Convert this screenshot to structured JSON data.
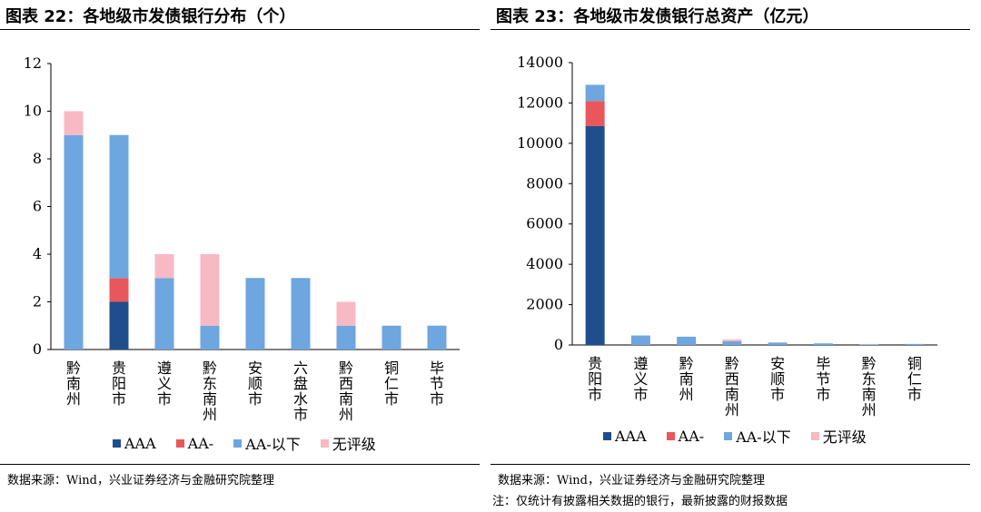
{
  "left": {
    "title": "图表 22：各地级市发债银行分布（个）",
    "source": "数据来源：Wind，兴业证券经济与金融研究院整理"
  },
  "right": {
    "title": "图表 23：各地级市发债银行总资产（亿元）",
    "source": "数据来源：Wind，兴业证券经济与金融研究院整理",
    "note": "注：仅统计有披露相关数据的银行，最新披露的财报数据"
  },
  "colors": {
    "AAA": "#1f4e8c",
    "AA-": "#e8575c",
    "AA-以下": "#6ea6df",
    "无评级": "#f7b9c4"
  },
  "chart_data": [
    {
      "type": "bar",
      "stacked": true,
      "categories": [
        "黔南州",
        "贵阳市",
        "遵义市",
        "黔东南州",
        "安顺市",
        "六盘水市",
        "黔西南州",
        "铜仁市",
        "毕节市"
      ],
      "series": [
        {
          "name": "AAA",
          "values": [
            0,
            2,
            0,
            0,
            0,
            0,
            0,
            0,
            0
          ]
        },
        {
          "name": "AA-",
          "values": [
            0,
            1,
            0,
            0,
            0,
            0,
            0,
            0,
            0
          ]
        },
        {
          "name": "AA-以下",
          "values": [
            9,
            6,
            3,
            1,
            3,
            3,
            1,
            1,
            1
          ]
        },
        {
          "name": "无评级",
          "values": [
            1,
            0,
            1,
            3,
            0,
            0,
            1,
            0,
            0
          ]
        }
      ],
      "ylim": [
        0,
        12
      ],
      "yticks": [
        0,
        2,
        4,
        6,
        8,
        10,
        12
      ],
      "grid": false,
      "legend": "bottom"
    },
    {
      "type": "bar",
      "stacked": true,
      "categories": [
        "贵阳市",
        "遵义市",
        "黔南州",
        "黔西南州",
        "安顺市",
        "毕节市",
        "黔东南州",
        "铜仁市"
      ],
      "series": [
        {
          "name": "AAA",
          "values": [
            10850,
            0,
            0,
            0,
            0,
            0,
            0,
            0
          ]
        },
        {
          "name": "AA-",
          "values": [
            1250,
            0,
            0,
            0,
            0,
            0,
            0,
            0
          ]
        },
        {
          "name": "AA-以下",
          "values": [
            800,
            470,
            410,
            180,
            120,
            80,
            30,
            50
          ]
        },
        {
          "name": "无评级",
          "values": [
            0,
            0,
            0,
            100,
            0,
            0,
            20,
            0
          ]
        }
      ],
      "ylim": [
        0,
        14000
      ],
      "yticks": [
        0,
        2000,
        4000,
        6000,
        8000,
        10000,
        12000,
        14000
      ],
      "grid": false,
      "legend": "bottom"
    }
  ]
}
